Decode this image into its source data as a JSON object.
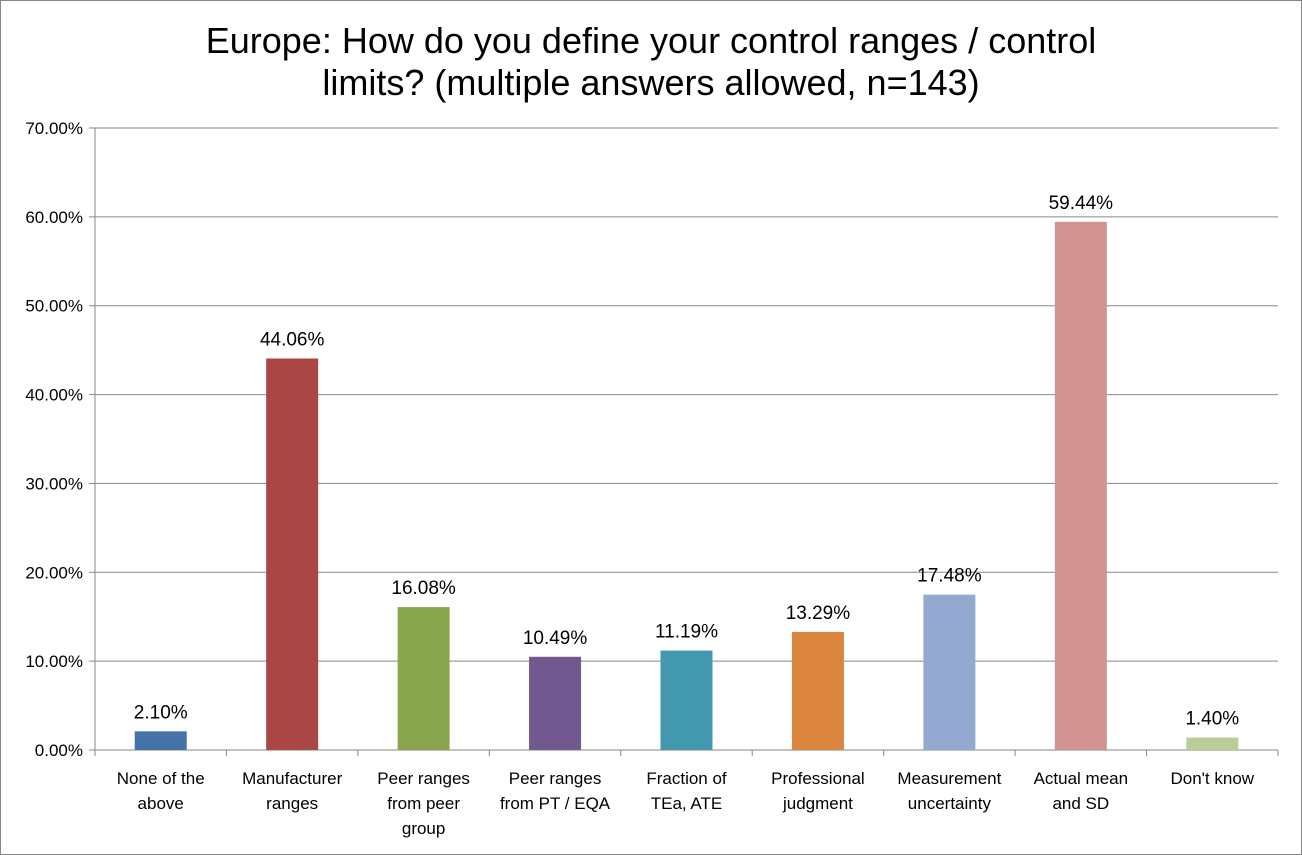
{
  "chart_data": {
    "type": "bar",
    "title_lines": [
      "Europe: How do you define your control ranges / control",
      "limits? (multiple answers allowed, n=143)"
    ],
    "categories": [
      [
        "None of the",
        "above"
      ],
      [
        "Manufacturer",
        "ranges"
      ],
      [
        "Peer  ranges",
        "from peer",
        "group"
      ],
      [
        "Peer ranges",
        "from PT / EQA"
      ],
      [
        "Fraction of",
        "TEa, ATE"
      ],
      [
        "Professional",
        "judgment"
      ],
      [
        "Measurement",
        "uncertainty"
      ],
      [
        "Actual mean",
        "and SD"
      ],
      [
        "Don't know"
      ]
    ],
    "values": [
      2.1,
      44.06,
      16.08,
      10.49,
      11.19,
      13.29,
      17.48,
      59.44,
      1.4
    ],
    "data_labels": [
      "2.10%",
      "44.06%",
      "16.08%",
      "10.49%",
      "11.19%",
      "13.29%",
      "17.48%",
      "59.44%",
      "1.40%"
    ],
    "colors": [
      "#4572a7",
      "#aa4643",
      "#89a54e",
      "#71588f",
      "#4198af",
      "#db843d",
      "#93a9cf",
      "#d19392",
      "#b9cd96"
    ],
    "ylim": [
      0,
      70
    ],
    "yticks": [
      "0.00%",
      "10.00%",
      "20.00%",
      "30.00%",
      "40.00%",
      "50.00%",
      "60.00%",
      "70.00%"
    ],
    "grid": true,
    "legend": "none",
    "xlabel": "",
    "ylabel": ""
  }
}
